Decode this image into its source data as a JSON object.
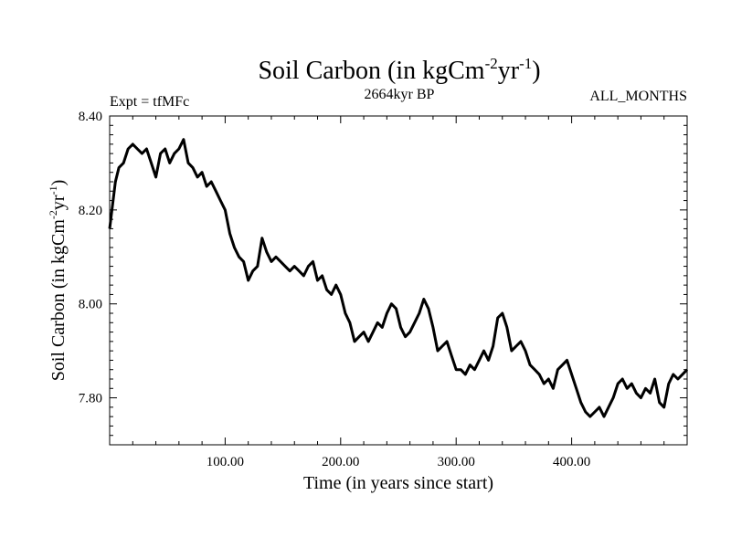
{
  "chart_data": {
    "type": "line",
    "title_main": "Soil Carbon (in kgCm",
    "title_sup1": "-2",
    "title_mid": "yr",
    "title_sup2": "-1",
    "title_end": ")",
    "experiment": "Expt = tfMFc",
    "period": "2664kyr BP",
    "months": "ALL_MONTHS",
    "xlabel": "Time (in years since start)",
    "ylabel_main": "Soil Carbon (in kgCm",
    "ylabel_sup1": "-2",
    "ylabel_mid": "yr",
    "ylabel_sup2": "-1",
    "ylabel_end": ")",
    "xlim": [
      0,
      500
    ],
    "ylim": [
      7.7,
      8.4
    ],
    "xticks": [
      {
        "value": 100,
        "label": "100.00"
      },
      {
        "value": 200,
        "label": "200.00"
      },
      {
        "value": 300,
        "label": "300.00"
      },
      {
        "value": 400,
        "label": "400.00"
      }
    ],
    "yticks": [
      {
        "value": 8.4,
        "label": "8.40"
      },
      {
        "value": 8.2,
        "label": "8.20"
      },
      {
        "value": 8.0,
        "label": "8.00"
      },
      {
        "value": 7.8,
        "label": "7.80"
      }
    ],
    "series": [
      {
        "name": "Soil Carbon",
        "x": [
          0,
          2,
          5,
          8,
          12,
          16,
          20,
          24,
          28,
          32,
          36,
          40,
          44,
          48,
          52,
          56,
          60,
          64,
          68,
          72,
          76,
          80,
          84,
          88,
          92,
          96,
          100,
          104,
          108,
          112,
          116,
          120,
          124,
          128,
          132,
          136,
          140,
          144,
          148,
          152,
          156,
          160,
          164,
          168,
          172,
          176,
          180,
          184,
          188,
          192,
          196,
          200,
          204,
          208,
          212,
          216,
          220,
          224,
          228,
          232,
          236,
          240,
          244,
          248,
          252,
          256,
          260,
          264,
          268,
          272,
          276,
          280,
          284,
          288,
          292,
          296,
          300,
          304,
          308,
          312,
          316,
          320,
          324,
          328,
          332,
          336,
          340,
          344,
          348,
          352,
          356,
          360,
          364,
          368,
          372,
          376,
          380,
          384,
          388,
          392,
          396,
          400,
          404,
          408,
          412,
          416,
          420,
          424,
          428,
          432,
          436,
          440,
          444,
          448,
          452,
          456,
          460,
          464,
          468,
          472,
          476,
          480,
          484,
          488,
          492,
          496,
          500
        ],
        "values": [
          8.16,
          8.2,
          8.26,
          8.29,
          8.3,
          8.33,
          8.34,
          8.33,
          8.32,
          8.33,
          8.3,
          8.27,
          8.32,
          8.33,
          8.3,
          8.32,
          8.33,
          8.35,
          8.3,
          8.29,
          8.27,
          8.28,
          8.25,
          8.26,
          8.24,
          8.22,
          8.2,
          8.15,
          8.12,
          8.1,
          8.09,
          8.05,
          8.07,
          8.08,
          8.14,
          8.11,
          8.09,
          8.1,
          8.09,
          8.08,
          8.07,
          8.08,
          8.07,
          8.06,
          8.08,
          8.09,
          8.05,
          8.06,
          8.03,
          8.02,
          8.04,
          8.02,
          7.98,
          7.96,
          7.92,
          7.93,
          7.94,
          7.92,
          7.94,
          7.96,
          7.95,
          7.98,
          8.0,
          7.99,
          7.95,
          7.93,
          7.94,
          7.96,
          7.98,
          8.01,
          7.99,
          7.95,
          7.9,
          7.91,
          7.92,
          7.89,
          7.86,
          7.86,
          7.85,
          7.87,
          7.86,
          7.88,
          7.9,
          7.88,
          7.91,
          7.97,
          7.98,
          7.95,
          7.9,
          7.91,
          7.92,
          7.9,
          7.87,
          7.86,
          7.85,
          7.83,
          7.84,
          7.82,
          7.86,
          7.87,
          7.88,
          7.85,
          7.82,
          7.79,
          7.77,
          7.76,
          7.77,
          7.78,
          7.76,
          7.78,
          7.8,
          7.83,
          7.84,
          7.82,
          7.83,
          7.81,
          7.8,
          7.82,
          7.81,
          7.84,
          7.79,
          7.78,
          7.83,
          7.85,
          7.84,
          7.85,
          7.86
        ]
      }
    ]
  }
}
